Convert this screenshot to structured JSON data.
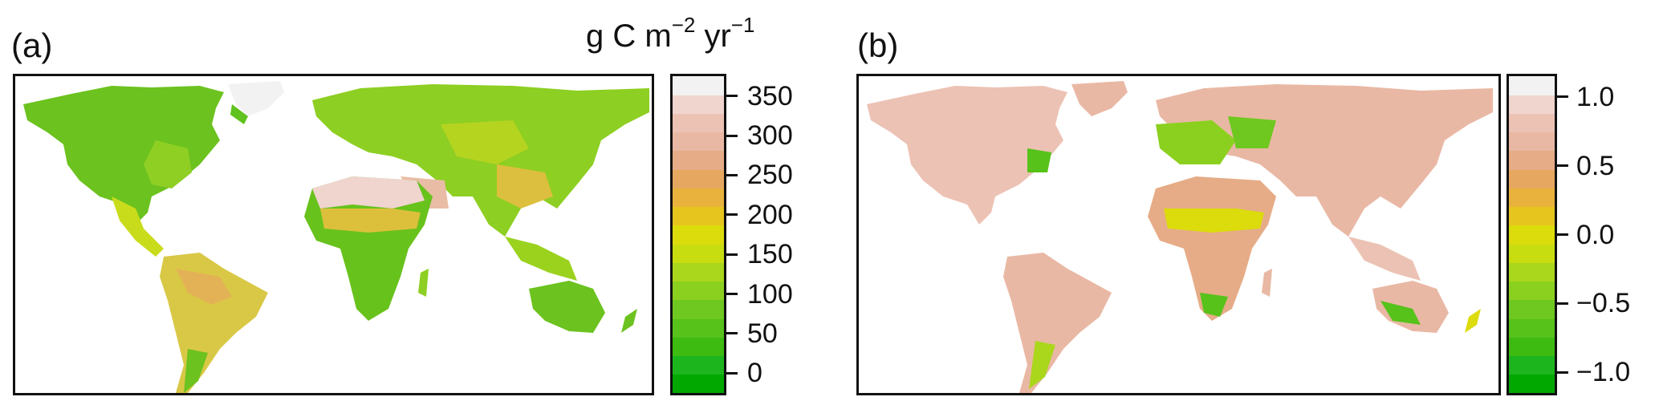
{
  "panels": [
    {
      "label": "(a)",
      "unit": {
        "main": "g C m",
        "sup1": "−2",
        "mid": " yr",
        "sup2": "−1"
      },
      "colorbar": {
        "min": -25,
        "max": 375,
        "colors": [
          "#00a800",
          "#1db51d",
          "#3dbb11",
          "#56c21a",
          "#6fc820",
          "#8cd01f",
          "#aad61c",
          "#c7dd10",
          "#dcdb0c",
          "#e6c51f",
          "#e8b23c",
          "#e6a860",
          "#e6ac87",
          "#e9b8a4",
          "#ecc2b4",
          "#f0d4ce",
          "#f2f2f2"
        ],
        "ticks": [
          {
            "value": 0,
            "label": "0"
          },
          {
            "value": 50,
            "label": "50"
          },
          {
            "value": 100,
            "label": "100"
          },
          {
            "value": 150,
            "label": "150"
          },
          {
            "value": 200,
            "label": "200"
          },
          {
            "value": 250,
            "label": "250"
          },
          {
            "value": 300,
            "label": "300"
          },
          {
            "value": 350,
            "label": "350"
          }
        ]
      }
    },
    {
      "label": "(b)",
      "colorbar": {
        "min": -1.15,
        "max": 1.15,
        "colors": [
          "#00a800",
          "#1db51d",
          "#3dbb11",
          "#56c21a",
          "#6fc820",
          "#8cd01f",
          "#aad61c",
          "#c7dd10",
          "#dcdb0c",
          "#e6c51f",
          "#e8b23c",
          "#e6a860",
          "#e6ac87",
          "#e9b8a4",
          "#ecc2b4",
          "#f0d4ce",
          "#f2f2f2"
        ],
        "ticks": [
          {
            "value": -1.0,
            "label": "−1.0"
          },
          {
            "value": -0.5,
            "label": "−0.5"
          },
          {
            "value": 0.0,
            "label": "0.0"
          },
          {
            "value": 0.5,
            "label": "0.5"
          },
          {
            "value": 1.0,
            "label": "1.0"
          }
        ]
      }
    }
  ]
}
